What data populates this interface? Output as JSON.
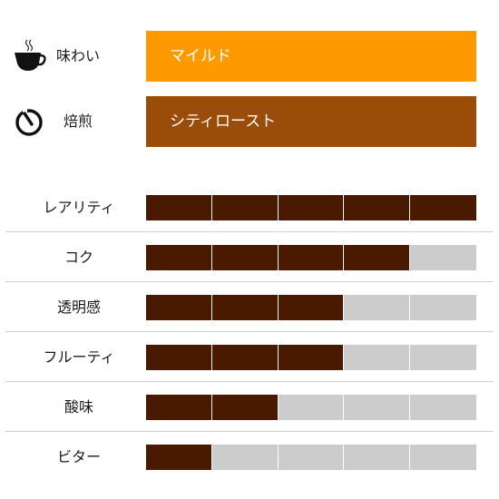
{
  "colors": {
    "taste_box": "#FF9900",
    "roast_box": "#9A4D09",
    "filled": "#4A1A00",
    "empty": "#CCCCCC"
  },
  "taste": {
    "icon": "coffee-cup-icon",
    "label": "味わい",
    "value": "マイルド"
  },
  "roast": {
    "icon": "timer-icon",
    "label": "焙煎",
    "value": "シティロースト"
  },
  "ratings": [
    {
      "label": "レアリティ",
      "value": 5,
      "max": 5
    },
    {
      "label": "コク",
      "value": 4,
      "max": 5
    },
    {
      "label": "透明感",
      "value": 3,
      "max": 5
    },
    {
      "label": "フルーティ",
      "value": 3,
      "max": 5
    },
    {
      "label": "酸味",
      "value": 2,
      "max": 5
    },
    {
      "label": "ビター",
      "value": 1,
      "max": 5
    }
  ]
}
